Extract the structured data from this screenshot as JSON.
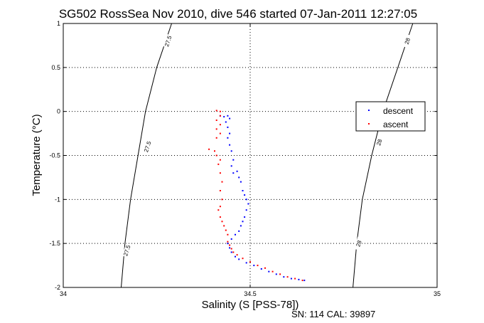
{
  "chart_data": {
    "type": "scatter",
    "title": "SG502 RossSea Nov 2010, dive 546 started 07-Jan-2011 12:27:05",
    "xlabel": "Salinity (S [PSS-78])",
    "ylabel": "Temperature (°C)",
    "xlim": [
      34,
      35
    ],
    "ylim": [
      -2,
      1
    ],
    "x_ticks": [
      "34",
      "34.5",
      "35"
    ],
    "y_ticks": [
      "-2",
      "-1.5",
      "-1",
      "-0.5",
      "0",
      "0.5",
      "1"
    ],
    "grid": true,
    "legend_position": "right",
    "series": [
      {
        "name": "descent",
        "color": "#0000ff",
        "points": [
          [
            34.42,
            -0.05
          ],
          [
            34.43,
            -0.06
          ],
          [
            34.44,
            -0.05
          ],
          [
            34.445,
            -0.08
          ],
          [
            34.435,
            -0.12
          ],
          [
            34.44,
            -0.18
          ],
          [
            34.445,
            -0.25
          ],
          [
            34.44,
            -0.3
          ],
          [
            34.445,
            -0.38
          ],
          [
            34.45,
            -0.45
          ],
          [
            34.455,
            -0.55
          ],
          [
            34.45,
            -0.62
          ],
          [
            34.455,
            -0.7
          ],
          [
            34.465,
            -0.68
          ],
          [
            34.47,
            -0.75
          ],
          [
            34.475,
            -0.8
          ],
          [
            34.48,
            -0.9
          ],
          [
            34.485,
            -0.95
          ],
          [
            34.49,
            -1.0
          ],
          [
            34.495,
            -1.05
          ],
          [
            34.49,
            -1.12
          ],
          [
            34.485,
            -1.2
          ],
          [
            34.48,
            -1.25
          ],
          [
            34.475,
            -1.3
          ],
          [
            34.47,
            -1.36
          ],
          [
            34.46,
            -1.4
          ],
          [
            34.45,
            -1.45
          ],
          [
            34.44,
            -1.5
          ],
          [
            34.445,
            -1.55
          ],
          [
            34.45,
            -1.6
          ],
          [
            34.46,
            -1.65
          ],
          [
            34.47,
            -1.68
          ],
          [
            34.49,
            -1.72
          ],
          [
            34.51,
            -1.75
          ],
          [
            34.53,
            -1.79
          ],
          [
            34.55,
            -1.82
          ],
          [
            34.57,
            -1.85
          ],
          [
            34.59,
            -1.88
          ],
          [
            34.61,
            -1.9
          ],
          [
            34.63,
            -1.91
          ],
          [
            34.645,
            -1.92
          ]
        ]
      },
      {
        "name": "ascent",
        "color": "#ff0000",
        "points": [
          [
            34.41,
            0.01
          ],
          [
            34.42,
            0.0
          ],
          [
            34.42,
            -0.05
          ],
          [
            34.41,
            -0.1
          ],
          [
            34.42,
            -0.15
          ],
          [
            34.41,
            -0.2
          ],
          [
            34.42,
            -0.25
          ],
          [
            34.41,
            -0.3
          ],
          [
            34.39,
            -0.43
          ],
          [
            34.405,
            -0.45
          ],
          [
            34.41,
            -0.5
          ],
          [
            34.42,
            -0.55
          ],
          [
            34.415,
            -0.6
          ],
          [
            34.42,
            -0.7
          ],
          [
            34.425,
            -0.8
          ],
          [
            34.42,
            -0.9
          ],
          [
            34.425,
            -1.0
          ],
          [
            34.42,
            -1.08
          ],
          [
            34.415,
            -1.12
          ],
          [
            34.42,
            -1.2
          ],
          [
            34.425,
            -1.25
          ],
          [
            34.43,
            -1.3
          ],
          [
            34.435,
            -1.35
          ],
          [
            34.44,
            -1.4
          ],
          [
            34.44,
            -1.48
          ],
          [
            34.445,
            -1.52
          ],
          [
            34.45,
            -1.56
          ],
          [
            34.455,
            -1.6
          ],
          [
            34.465,
            -1.63
          ],
          [
            34.48,
            -1.67
          ],
          [
            34.5,
            -1.71
          ],
          [
            34.52,
            -1.75
          ],
          [
            34.54,
            -1.78
          ],
          [
            34.56,
            -1.82
          ],
          [
            34.58,
            -1.85
          ],
          [
            34.6,
            -1.88
          ],
          [
            34.62,
            -1.9
          ],
          [
            34.64,
            -1.92
          ]
        ]
      }
    ],
    "density_contours": [
      {
        "label": "27.5",
        "color": "#000000",
        "points": [
          [
            34.29,
            1.0
          ],
          [
            34.25,
            0.5
          ],
          [
            34.22,
            0.0
          ],
          [
            34.2,
            -0.5
          ],
          [
            34.18,
            -1.0
          ],
          [
            34.165,
            -1.5
          ],
          [
            34.155,
            -2.0
          ]
        ]
      },
      {
        "label": "28",
        "color": "#000000",
        "points": [
          [
            34.935,
            1.0
          ],
          [
            34.895,
            0.5
          ],
          [
            34.855,
            0.0
          ],
          [
            34.825,
            -0.5
          ],
          [
            34.8,
            -1.0
          ],
          [
            34.785,
            -1.5
          ],
          [
            34.775,
            -2.0
          ]
        ]
      }
    ],
    "contour_labels": [
      {
        "text": "27.5",
        "x": 34.28,
        "y": 0.8
      },
      {
        "text": "27.5",
        "x": 34.225,
        "y": -0.4
      },
      {
        "text": "27.5",
        "x": 34.17,
        "y": -1.58
      },
      {
        "text": "28",
        "x": 34.92,
        "y": 0.8
      },
      {
        "text": "28",
        "x": 34.845,
        "y": -0.35
      },
      {
        "text": "28",
        "x": 34.79,
        "y": -1.5
      }
    ]
  },
  "footer_text": "SN: 114  CAL: 39897"
}
